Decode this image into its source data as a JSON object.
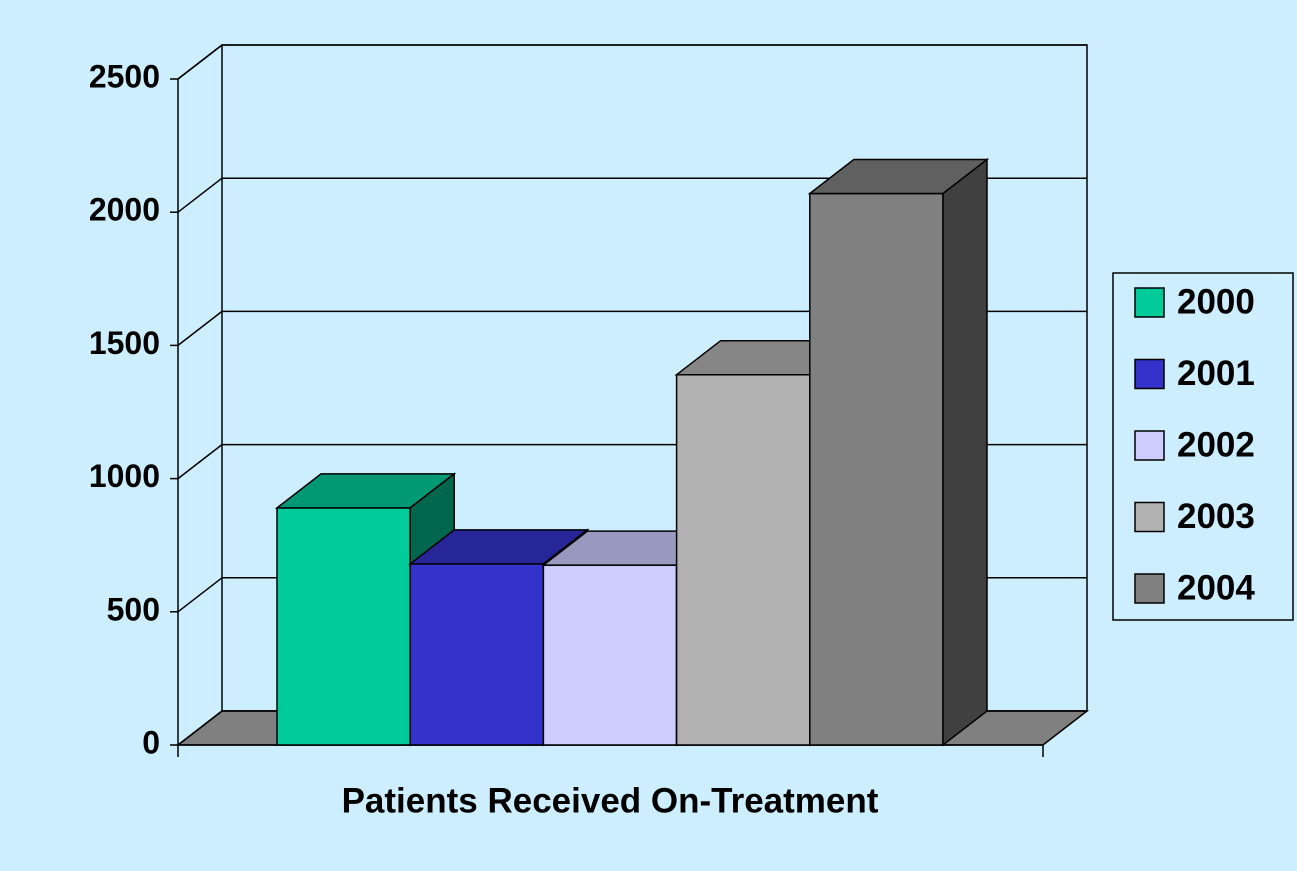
{
  "chart_data": {
    "type": "bar",
    "categories": [
      "Patients Received On-Treatment"
    ],
    "series": [
      {
        "name": "2000",
        "color": "#00cc99",
        "values": [
          890
        ]
      },
      {
        "name": "2001",
        "color": "#3333cc",
        "values": [
          680
        ]
      },
      {
        "name": "2002",
        "color": "#ccccff",
        "values": [
          675
        ]
      },
      {
        "name": "2003",
        "color": "#b2b2b2",
        "values": [
          1390
        ]
      },
      {
        "name": "2004",
        "color": "#808080",
        "values": [
          2070
        ]
      }
    ],
    "ylim": [
      0,
      2500
    ],
    "yticks": [
      0,
      500,
      1000,
      1500,
      2000,
      2500
    ],
    "grid": true,
    "legend": "right"
  }
}
